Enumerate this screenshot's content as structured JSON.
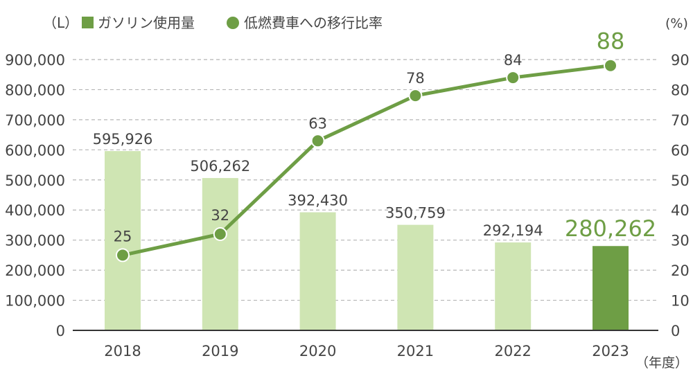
{
  "chart_data": {
    "type": "bar+line",
    "categories": [
      "2018",
      "2019",
      "2020",
      "2021",
      "2022",
      "2023"
    ],
    "series": [
      {
        "name": "ガソリン使用量",
        "type": "bar",
        "axis": "left",
        "values": [
          595926,
          506262,
          392430,
          350759,
          292194,
          280262
        ],
        "labels": [
          "595,926",
          "506,262",
          "392,430",
          "350,759",
          "292,194",
          "280,262"
        ]
      },
      {
        "name": "低燃費車への移行比率",
        "type": "line",
        "axis": "right",
        "values": [
          25,
          32,
          63,
          78,
          84,
          88
        ],
        "labels": [
          "25",
          "32",
          "63",
          "78",
          "84",
          "88"
        ]
      }
    ],
    "left_unit": "（L）",
    "right_unit": "(%)",
    "x_unit": "（年度）",
    "ylim_left": [
      0,
      900000
    ],
    "ylim_right": [
      0,
      90
    ],
    "left_ticks": [
      "0",
      "100,000",
      "200,000",
      "300,000",
      "400,000",
      "500,000",
      "600,000",
      "700,000",
      "800,000",
      "900,000"
    ],
    "right_ticks": [
      "0",
      "10",
      "20",
      "30",
      "40",
      "50",
      "60",
      "70",
      "80",
      "90"
    ],
    "grid": true,
    "legend_position": "top-left",
    "highlight_category": "2023",
    "colors": {
      "bar": "#cfe5b3",
      "bar_highlight": "#6e9e45",
      "line": "#6e9e45",
      "highlight_text": "#6e9e45",
      "text": "#444444",
      "grid": "#b5b5b5"
    }
  }
}
